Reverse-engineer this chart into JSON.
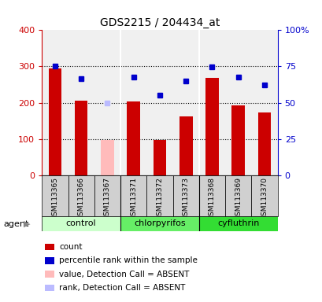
{
  "title": "GDS2215 / 204434_at",
  "samples": [
    "GSM113365",
    "GSM113366",
    "GSM113367",
    "GSM113371",
    "GSM113372",
    "GSM113373",
    "GSM113368",
    "GSM113369",
    "GSM113370"
  ],
  "bar_values": [
    295,
    205,
    97,
    203,
    96,
    162,
    268,
    192,
    174
  ],
  "bar_absent": [
    false,
    false,
    true,
    false,
    false,
    false,
    false,
    false,
    false
  ],
  "rank_values": [
    75,
    66.5,
    50,
    67.5,
    55,
    65,
    74.5,
    67.5,
    62
  ],
  "rank_absent": [
    false,
    false,
    true,
    false,
    false,
    false,
    false,
    false,
    false
  ],
  "bar_color_normal": "#cc0000",
  "bar_color_absent": "#ffbbbb",
  "rank_color_normal": "#0000cc",
  "rank_color_absent": "#bbbbff",
  "groups": [
    {
      "label": "control",
      "start": 0,
      "end": 2,
      "color": "#ccffcc"
    },
    {
      "label": "chlorpyrifos",
      "start": 3,
      "end": 5,
      "color": "#66ee66"
    },
    {
      "label": "cyfluthrin",
      "start": 6,
      "end": 8,
      "color": "#33dd33"
    }
  ],
  "ylim_left": [
    0,
    400
  ],
  "ylim_right": [
    0,
    100
  ],
  "yticks_left": [
    0,
    100,
    200,
    300,
    400
  ],
  "ytick_labels_left": [
    "0",
    "100",
    "200",
    "300",
    "400"
  ],
  "yticks_right": [
    0,
    25,
    50,
    75,
    100
  ],
  "ytick_labels_right": [
    "0",
    "25",
    "50",
    "75",
    "100%"
  ],
  "agent_label": "agent",
  "plot_bg_color": "#f0f0f0",
  "left_axis_color": "#cc0000",
  "right_axis_color": "#0000cc",
  "legend_items": [
    {
      "color": "#cc0000",
      "label": "count"
    },
    {
      "color": "#0000cc",
      "label": "percentile rank within the sample"
    },
    {
      "color": "#ffbbbb",
      "label": "value, Detection Call = ABSENT"
    },
    {
      "color": "#bbbbff",
      "label": "rank, Detection Call = ABSENT"
    }
  ]
}
